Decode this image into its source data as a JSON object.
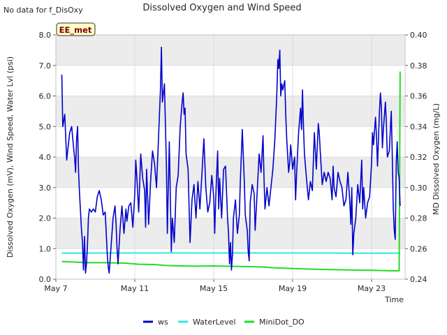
{
  "header": {
    "note": "No data for f_DisOxy"
  },
  "chart_data": {
    "type": "line",
    "title": "Dissolved Oxygen and Wind Speed",
    "badge": "EE_met",
    "xlabel": "Time",
    "ylabel_left": "Dissolved Oxygen (mV), Wind Speed, Water Lvl (psi)",
    "ylabel_right": "MD Dissolved Oxygen (mg/L)",
    "x_range_days": [
      0,
      17.7
    ],
    "x_ticks": [
      {
        "day": 0,
        "label": "May 7"
      },
      {
        "day": 4,
        "label": "May 11"
      },
      {
        "day": 8,
        "label": "May 15"
      },
      {
        "day": 12,
        "label": "May 19"
      },
      {
        "day": 16,
        "label": "May 23"
      }
    ],
    "ylim_left": [
      0,
      8
    ],
    "y_ticks_left": [
      "0.0",
      "1.0",
      "2.0",
      "3.0",
      "4.0",
      "5.0",
      "6.0",
      "7.0",
      "8.0"
    ],
    "ylim_right": [
      0.24,
      0.4
    ],
    "y_ticks_right": [
      "0.24",
      "0.26",
      "0.28",
      "0.30",
      "0.32",
      "0.34",
      "0.36",
      "0.38",
      "0.40"
    ],
    "legend_position": "bottom",
    "series": [
      {
        "name": "ws",
        "color": "#0000cc",
        "axis": "left",
        "points": [
          [
            0.3,
            6.7
          ],
          [
            0.35,
            5.0
          ],
          [
            0.45,
            5.4
          ],
          [
            0.55,
            3.9
          ],
          [
            0.7,
            4.8
          ],
          [
            0.8,
            5.0
          ],
          [
            0.9,
            4.3
          ],
          [
            0.95,
            4.0
          ],
          [
            1.0,
            3.5
          ],
          [
            1.05,
            4.6
          ],
          [
            1.1,
            5.0
          ],
          [
            1.15,
            3.5
          ],
          [
            1.2,
            2.8
          ],
          [
            1.3,
            1.6
          ],
          [
            1.35,
            1.2
          ],
          [
            1.4,
            0.3
          ],
          [
            1.45,
            1.4
          ],
          [
            1.5,
            0.2
          ],
          [
            1.55,
            0.5
          ],
          [
            1.6,
            1.1
          ],
          [
            1.65,
            2.0
          ],
          [
            1.7,
            2.3
          ],
          [
            1.8,
            2.2
          ],
          [
            1.9,
            2.3
          ],
          [
            2.0,
            2.2
          ],
          [
            2.1,
            2.7
          ],
          [
            2.2,
            2.9
          ],
          [
            2.3,
            2.6
          ],
          [
            2.4,
            2.1
          ],
          [
            2.5,
            2.2
          ],
          [
            2.6,
            0.9
          ],
          [
            2.65,
            0.4
          ],
          [
            2.7,
            0.2
          ],
          [
            2.8,
            1.1
          ],
          [
            2.9,
            2.0
          ],
          [
            3.0,
            2.4
          ],
          [
            3.05,
            1.8
          ],
          [
            3.1,
            1.0
          ],
          [
            3.15,
            0.5
          ],
          [
            3.25,
            1.6
          ],
          [
            3.35,
            2.4
          ],
          [
            3.45,
            1.5
          ],
          [
            3.55,
            2.3
          ],
          [
            3.6,
            1.9
          ],
          [
            3.7,
            2.4
          ],
          [
            3.8,
            2.5
          ],
          [
            3.9,
            1.7
          ],
          [
            4.0,
            2.8
          ],
          [
            4.05,
            3.9
          ],
          [
            4.1,
            3.4
          ],
          [
            4.2,
            2.2
          ],
          [
            4.3,
            4.1
          ],
          [
            4.4,
            3.3
          ],
          [
            4.5,
            2.9
          ],
          [
            4.55,
            1.7
          ],
          [
            4.6,
            3.6
          ],
          [
            4.7,
            1.8
          ],
          [
            4.8,
            3.2
          ],
          [
            4.9,
            4.2
          ],
          [
            5.0,
            3.8
          ],
          [
            5.1,
            3.0
          ],
          [
            5.2,
            4.6
          ],
          [
            5.3,
            6.2
          ],
          [
            5.35,
            7.6
          ],
          [
            5.4,
            5.8
          ],
          [
            5.5,
            6.4
          ],
          [
            5.6,
            3.8
          ],
          [
            5.65,
            1.5
          ],
          [
            5.75,
            4.5
          ],
          [
            5.8,
            2.8
          ],
          [
            5.85,
            0.9
          ],
          [
            5.9,
            2.0
          ],
          [
            6.0,
            1.2
          ],
          [
            6.1,
            3.0
          ],
          [
            6.2,
            3.4
          ],
          [
            6.3,
            5.0
          ],
          [
            6.4,
            5.8
          ],
          [
            6.45,
            6.1
          ],
          [
            6.5,
            5.4
          ],
          [
            6.55,
            5.6
          ],
          [
            6.6,
            4.1
          ],
          [
            6.7,
            3.6
          ],
          [
            6.75,
            2.4
          ],
          [
            6.8,
            1.2
          ],
          [
            6.9,
            2.6
          ],
          [
            7.0,
            3.1
          ],
          [
            7.1,
            2.0
          ],
          [
            7.2,
            3.2
          ],
          [
            7.3,
            2.3
          ],
          [
            7.4,
            3.4
          ],
          [
            7.5,
            4.6
          ],
          [
            7.6,
            3.0
          ],
          [
            7.7,
            2.2
          ],
          [
            7.8,
            2.5
          ],
          [
            7.9,
            3.4
          ],
          [
            8.0,
            2.7
          ],
          [
            8.05,
            1.5
          ],
          [
            8.1,
            2.6
          ],
          [
            8.2,
            4.2
          ],
          [
            8.25,
            2.3
          ],
          [
            8.3,
            3.3
          ],
          [
            8.4,
            2.0
          ],
          [
            8.5,
            3.6
          ],
          [
            8.6,
            3.7
          ],
          [
            8.7,
            2.0
          ],
          [
            8.75,
            1.5
          ],
          [
            8.8,
            0.5
          ],
          [
            8.85,
            1.2
          ],
          [
            8.9,
            0.3
          ],
          [
            8.95,
            0.8
          ],
          [
            9.0,
            2.0
          ],
          [
            9.1,
            2.6
          ],
          [
            9.2,
            1.5
          ],
          [
            9.3,
            2.1
          ],
          [
            9.35,
            3.2
          ],
          [
            9.45,
            4.9
          ],
          [
            9.55,
            3.2
          ],
          [
            9.6,
            2.1
          ],
          [
            9.7,
            1.6
          ],
          [
            9.75,
            0.9
          ],
          [
            9.8,
            0.6
          ],
          [
            9.85,
            2.5
          ],
          [
            9.95,
            3.1
          ],
          [
            10.05,
            2.8
          ],
          [
            10.1,
            1.6
          ],
          [
            10.2,
            2.8
          ],
          [
            10.3,
            4.1
          ],
          [
            10.4,
            3.5
          ],
          [
            10.5,
            4.7
          ],
          [
            10.55,
            3.3
          ],
          [
            10.6,
            2.3
          ],
          [
            10.7,
            3.0
          ],
          [
            10.8,
            2.4
          ],
          [
            10.9,
            3.0
          ],
          [
            11.0,
            3.6
          ],
          [
            11.1,
            4.6
          ],
          [
            11.2,
            6.1
          ],
          [
            11.25,
            7.2
          ],
          [
            11.3,
            6.9
          ],
          [
            11.35,
            7.5
          ],
          [
            11.4,
            6.0
          ],
          [
            11.45,
            6.4
          ],
          [
            11.5,
            6.2
          ],
          [
            11.6,
            6.5
          ],
          [
            11.65,
            5.4
          ],
          [
            11.7,
            4.6
          ],
          [
            11.8,
            3.5
          ],
          [
            11.85,
            3.8
          ],
          [
            11.9,
            4.4
          ],
          [
            12.0,
            3.6
          ],
          [
            12.1,
            4.0
          ],
          [
            12.15,
            2.6
          ],
          [
            12.2,
            3.4
          ],
          [
            12.3,
            4.8
          ],
          [
            12.4,
            5.6
          ],
          [
            12.45,
            4.9
          ],
          [
            12.5,
            6.2
          ],
          [
            12.55,
            5.0
          ],
          [
            12.6,
            4.1
          ],
          [
            12.7,
            3.3
          ],
          [
            12.8,
            2.6
          ],
          [
            12.9,
            3.2
          ],
          [
            13.0,
            2.9
          ],
          [
            13.1,
            4.8
          ],
          [
            13.2,
            3.6
          ],
          [
            13.3,
            5.1
          ],
          [
            13.35,
            4.8
          ],
          [
            13.4,
            4.2
          ],
          [
            13.5,
            3.1
          ],
          [
            13.6,
            3.5
          ],
          [
            13.7,
            3.2
          ],
          [
            13.8,
            3.5
          ],
          [
            13.9,
            3.3
          ],
          [
            14.0,
            2.6
          ],
          [
            14.05,
            3.7
          ],
          [
            14.1,
            3.0
          ],
          [
            14.2,
            2.7
          ],
          [
            14.3,
            3.5
          ],
          [
            14.4,
            3.2
          ],
          [
            14.5,
            3.0
          ],
          [
            14.6,
            2.4
          ],
          [
            14.7,
            2.6
          ],
          [
            14.8,
            3.5
          ],
          [
            14.9,
            2.5
          ],
          [
            14.95,
            1.8
          ],
          [
            15.0,
            3.0
          ],
          [
            15.05,
            0.8
          ],
          [
            15.1,
            1.5
          ],
          [
            15.2,
            2.0
          ],
          [
            15.3,
            3.1
          ],
          [
            15.4,
            2.5
          ],
          [
            15.5,
            3.9
          ],
          [
            15.55,
            2.3
          ],
          [
            15.6,
            3.0
          ],
          [
            15.7,
            2.0
          ],
          [
            15.8,
            2.5
          ],
          [
            15.9,
            2.7
          ],
          [
            16.0,
            3.8
          ],
          [
            16.05,
            4.8
          ],
          [
            16.1,
            4.4
          ],
          [
            16.2,
            5.3
          ],
          [
            16.25,
            4.7
          ],
          [
            16.3,
            3.7
          ],
          [
            16.4,
            5.5
          ],
          [
            16.45,
            6.1
          ],
          [
            16.5,
            5.6
          ],
          [
            16.55,
            4.3
          ],
          [
            16.6,
            4.9
          ],
          [
            16.7,
            5.8
          ],
          [
            16.75,
            5.1
          ],
          [
            16.8,
            4.0
          ],
          [
            16.9,
            4.2
          ],
          [
            17.0,
            5.5
          ],
          [
            17.05,
            4.1
          ],
          [
            17.1,
            2.3
          ],
          [
            17.15,
            1.6
          ],
          [
            17.2,
            1.3
          ],
          [
            17.25,
            3.8
          ],
          [
            17.3,
            4.5
          ],
          [
            17.35,
            3.5
          ],
          [
            17.4,
            3.3
          ],
          [
            17.45,
            2.4
          ]
        ]
      },
      {
        "name": "WaterLevel",
        "color": "#33e6e6",
        "axis": "left",
        "points": [
          [
            0.3,
            0.85
          ],
          [
            5.0,
            0.86
          ],
          [
            10.0,
            0.86
          ],
          [
            14.0,
            0.86
          ],
          [
            14.5,
            0.85
          ],
          [
            17.45,
            0.85
          ]
        ]
      },
      {
        "name": "MiniDot_DO",
        "color": "#22dd22",
        "axis": "right",
        "points": [
          [
            0.3,
            0.2515
          ],
          [
            1.0,
            0.2512
          ],
          [
            1.5,
            0.2508
          ],
          [
            2.5,
            0.2508
          ],
          [
            3.5,
            0.2505
          ],
          [
            4.2,
            0.2498
          ],
          [
            5.0,
            0.2496
          ],
          [
            5.5,
            0.249
          ],
          [
            6.0,
            0.2488
          ],
          [
            7.0,
            0.2485
          ],
          [
            8.0,
            0.2487
          ],
          [
            8.5,
            0.2485
          ],
          [
            9.0,
            0.2484
          ],
          [
            10.0,
            0.2482
          ],
          [
            10.5,
            0.248
          ],
          [
            11.0,
            0.2475
          ],
          [
            12.0,
            0.247
          ],
          [
            13.0,
            0.2466
          ],
          [
            14.0,
            0.2462
          ],
          [
            15.0,
            0.246
          ],
          [
            16.0,
            0.2458
          ],
          [
            17.0,
            0.2455
          ],
          [
            17.4,
            0.2455
          ],
          [
            17.45,
            0.376
          ]
        ]
      }
    ]
  }
}
